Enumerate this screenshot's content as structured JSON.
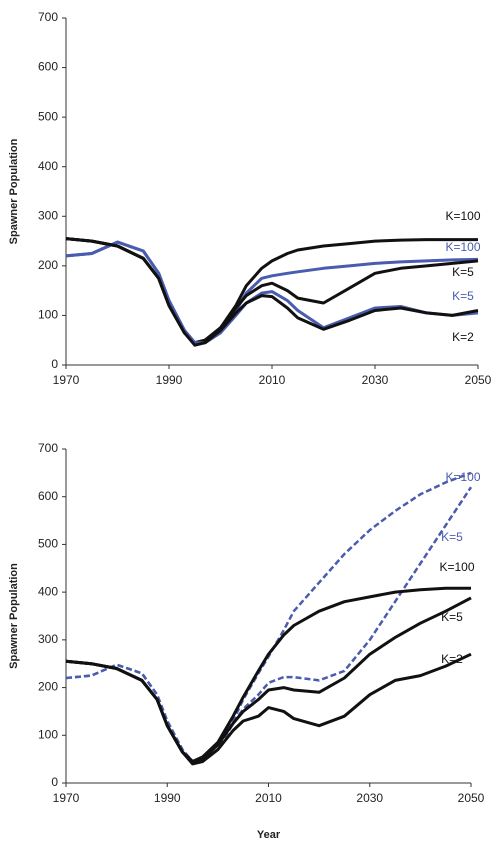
{
  "chart_data": [
    {
      "type": "line",
      "y_label": "Spawner Population",
      "x": [
        1970,
        1975,
        1980,
        1985,
        1988,
        1990,
        1993,
        1995,
        1997,
        2000,
        2003,
        2005,
        2008,
        2010,
        2013,
        2015,
        2020,
        2025,
        2030,
        2035,
        2040,
        2045,
        2050
      ],
      "xlim": [
        1970,
        2050
      ],
      "xticks": [
        1970,
        1990,
        2010,
        2030,
        2050
      ],
      "ylim": [
        0,
        700
      ],
      "yticks": [
        0,
        100,
        200,
        300,
        400,
        500,
        600,
        700
      ],
      "series": [
        {
          "name": "K=100",
          "color": "#111111",
          "dashed": false,
          "values": [
            255,
            250,
            240,
            215,
            175,
            120,
            65,
            45,
            50,
            75,
            120,
            160,
            195,
            210,
            225,
            232,
            240,
            245,
            250,
            252,
            253,
            253,
            253
          ]
        },
        {
          "name": "K=100",
          "color": "#4a5cb0",
          "dashed": false,
          "values": [
            220,
            225,
            248,
            230,
            185,
            130,
            70,
            45,
            45,
            65,
            110,
            145,
            175,
            180,
            185,
            188,
            195,
            200,
            205,
            208,
            210,
            212,
            213
          ]
        },
        {
          "name": "K=5",
          "color": "#111111",
          "dashed": false,
          "values": [
            255,
            250,
            240,
            215,
            175,
            120,
            65,
            45,
            50,
            75,
            115,
            140,
            160,
            165,
            150,
            135,
            125,
            155,
            185,
            195,
            200,
            205,
            210
          ]
        },
        {
          "name": "K=5",
          "color": "#4a5cb0",
          "dashed": false,
          "values": [
            220,
            225,
            248,
            230,
            185,
            130,
            70,
            45,
            45,
            65,
            100,
            125,
            145,
            148,
            130,
            110,
            75,
            95,
            115,
            118,
            105,
            100,
            105
          ]
        },
        {
          "name": "K=2",
          "color": "#111111",
          "dashed": false,
          "values": [
            255,
            250,
            240,
            215,
            175,
            120,
            65,
            40,
            45,
            70,
            105,
            125,
            140,
            138,
            115,
            95,
            72,
            90,
            110,
            115,
            105,
            100,
            110
          ]
        }
      ]
    },
    {
      "type": "line",
      "y_label": "Spawner Population",
      "x_label": "Year",
      "x": [
        1970,
        1975,
        1980,
        1985,
        1988,
        1990,
        1993,
        1995,
        1997,
        2000,
        2003,
        2005,
        2008,
        2010,
        2013,
        2015,
        2020,
        2025,
        2030,
        2035,
        2040,
        2045,
        2050
      ],
      "xlim": [
        1970,
        2050
      ],
      "xticks": [
        1970,
        1990,
        2010,
        2030,
        2050
      ],
      "ylim": [
        0,
        700
      ],
      "yticks": [
        0,
        100,
        200,
        300,
        400,
        500,
        600,
        700
      ],
      "series": [
        {
          "name": "K=100",
          "color": "#4a5cb0",
          "dashed": true,
          "values": [
            220,
            225,
            248,
            230,
            185,
            130,
            70,
            45,
            45,
            70,
            130,
            175,
            230,
            265,
            320,
            360,
            420,
            480,
            530,
            570,
            605,
            630,
            650
          ]
        },
        {
          "name": "K=5",
          "color": "#4a5cb0",
          "dashed": true,
          "values": [
            220,
            225,
            248,
            230,
            185,
            130,
            70,
            45,
            45,
            70,
            125,
            155,
            185,
            210,
            222,
            222,
            215,
            235,
            300,
            380,
            460,
            540,
            620
          ]
        },
        {
          "name": "K=100",
          "color": "#111111",
          "dashed": false,
          "values": [
            255,
            250,
            240,
            215,
            175,
            120,
            65,
            45,
            55,
            85,
            140,
            180,
            235,
            270,
            310,
            330,
            360,
            380,
            390,
            400,
            405,
            408,
            408
          ]
        },
        {
          "name": "K=5",
          "color": "#111111",
          "dashed": false,
          "values": [
            255,
            250,
            240,
            215,
            175,
            120,
            65,
            45,
            50,
            80,
            125,
            150,
            175,
            195,
            200,
            195,
            190,
            220,
            270,
            305,
            335,
            360,
            388
          ]
        },
        {
          "name": "K=2",
          "color": "#111111",
          "dashed": false,
          "values": [
            255,
            250,
            240,
            215,
            175,
            120,
            65,
            40,
            45,
            70,
            110,
            130,
            140,
            158,
            150,
            135,
            120,
            140,
            185,
            215,
            225,
            245,
            270
          ]
        }
      ]
    }
  ]
}
